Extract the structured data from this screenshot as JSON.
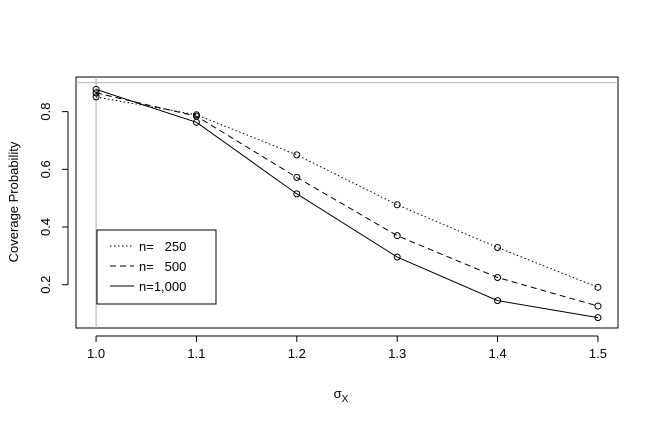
{
  "chart_data": {
    "type": "line",
    "title": "",
    "xlabel": "σ",
    "xlabel_sub": "X",
    "ylabel": "Coverage Probability",
    "x": [
      1.0,
      1.1,
      1.2,
      1.3,
      1.4,
      1.5
    ],
    "x_tick_labels": [
      "1.0",
      "1.1",
      "1.2",
      "1.3",
      "1.4",
      "1.5"
    ],
    "y_ticks": [
      0.2,
      0.4,
      0.6,
      0.8
    ],
    "y_tick_labels": [
      "0.2",
      "0.4",
      "0.6",
      "0.8"
    ],
    "xlim": [
      0.98,
      1.52
    ],
    "ylim": [
      0.05,
      0.92
    ],
    "reference_lines": {
      "horizontal": 0.9,
      "vertical": 1.0
    },
    "grid": false,
    "legend_position": "bottom-left",
    "series": [
      {
        "name": "n=   250",
        "style": "dotted",
        "values": [
          0.851,
          0.789,
          0.65,
          0.477,
          0.329,
          0.191
        ]
      },
      {
        "name": "n=   500",
        "style": "dashed",
        "values": [
          0.865,
          0.784,
          0.572,
          0.37,
          0.225,
          0.126
        ]
      },
      {
        "name": "n=1,000",
        "style": "solid",
        "values": [
          0.877,
          0.763,
          0.515,
          0.296,
          0.145,
          0.086
        ]
      }
    ],
    "colors": {
      "lines": "#000000",
      "reference": "#b0b0b0",
      "frame": "#000000"
    }
  }
}
